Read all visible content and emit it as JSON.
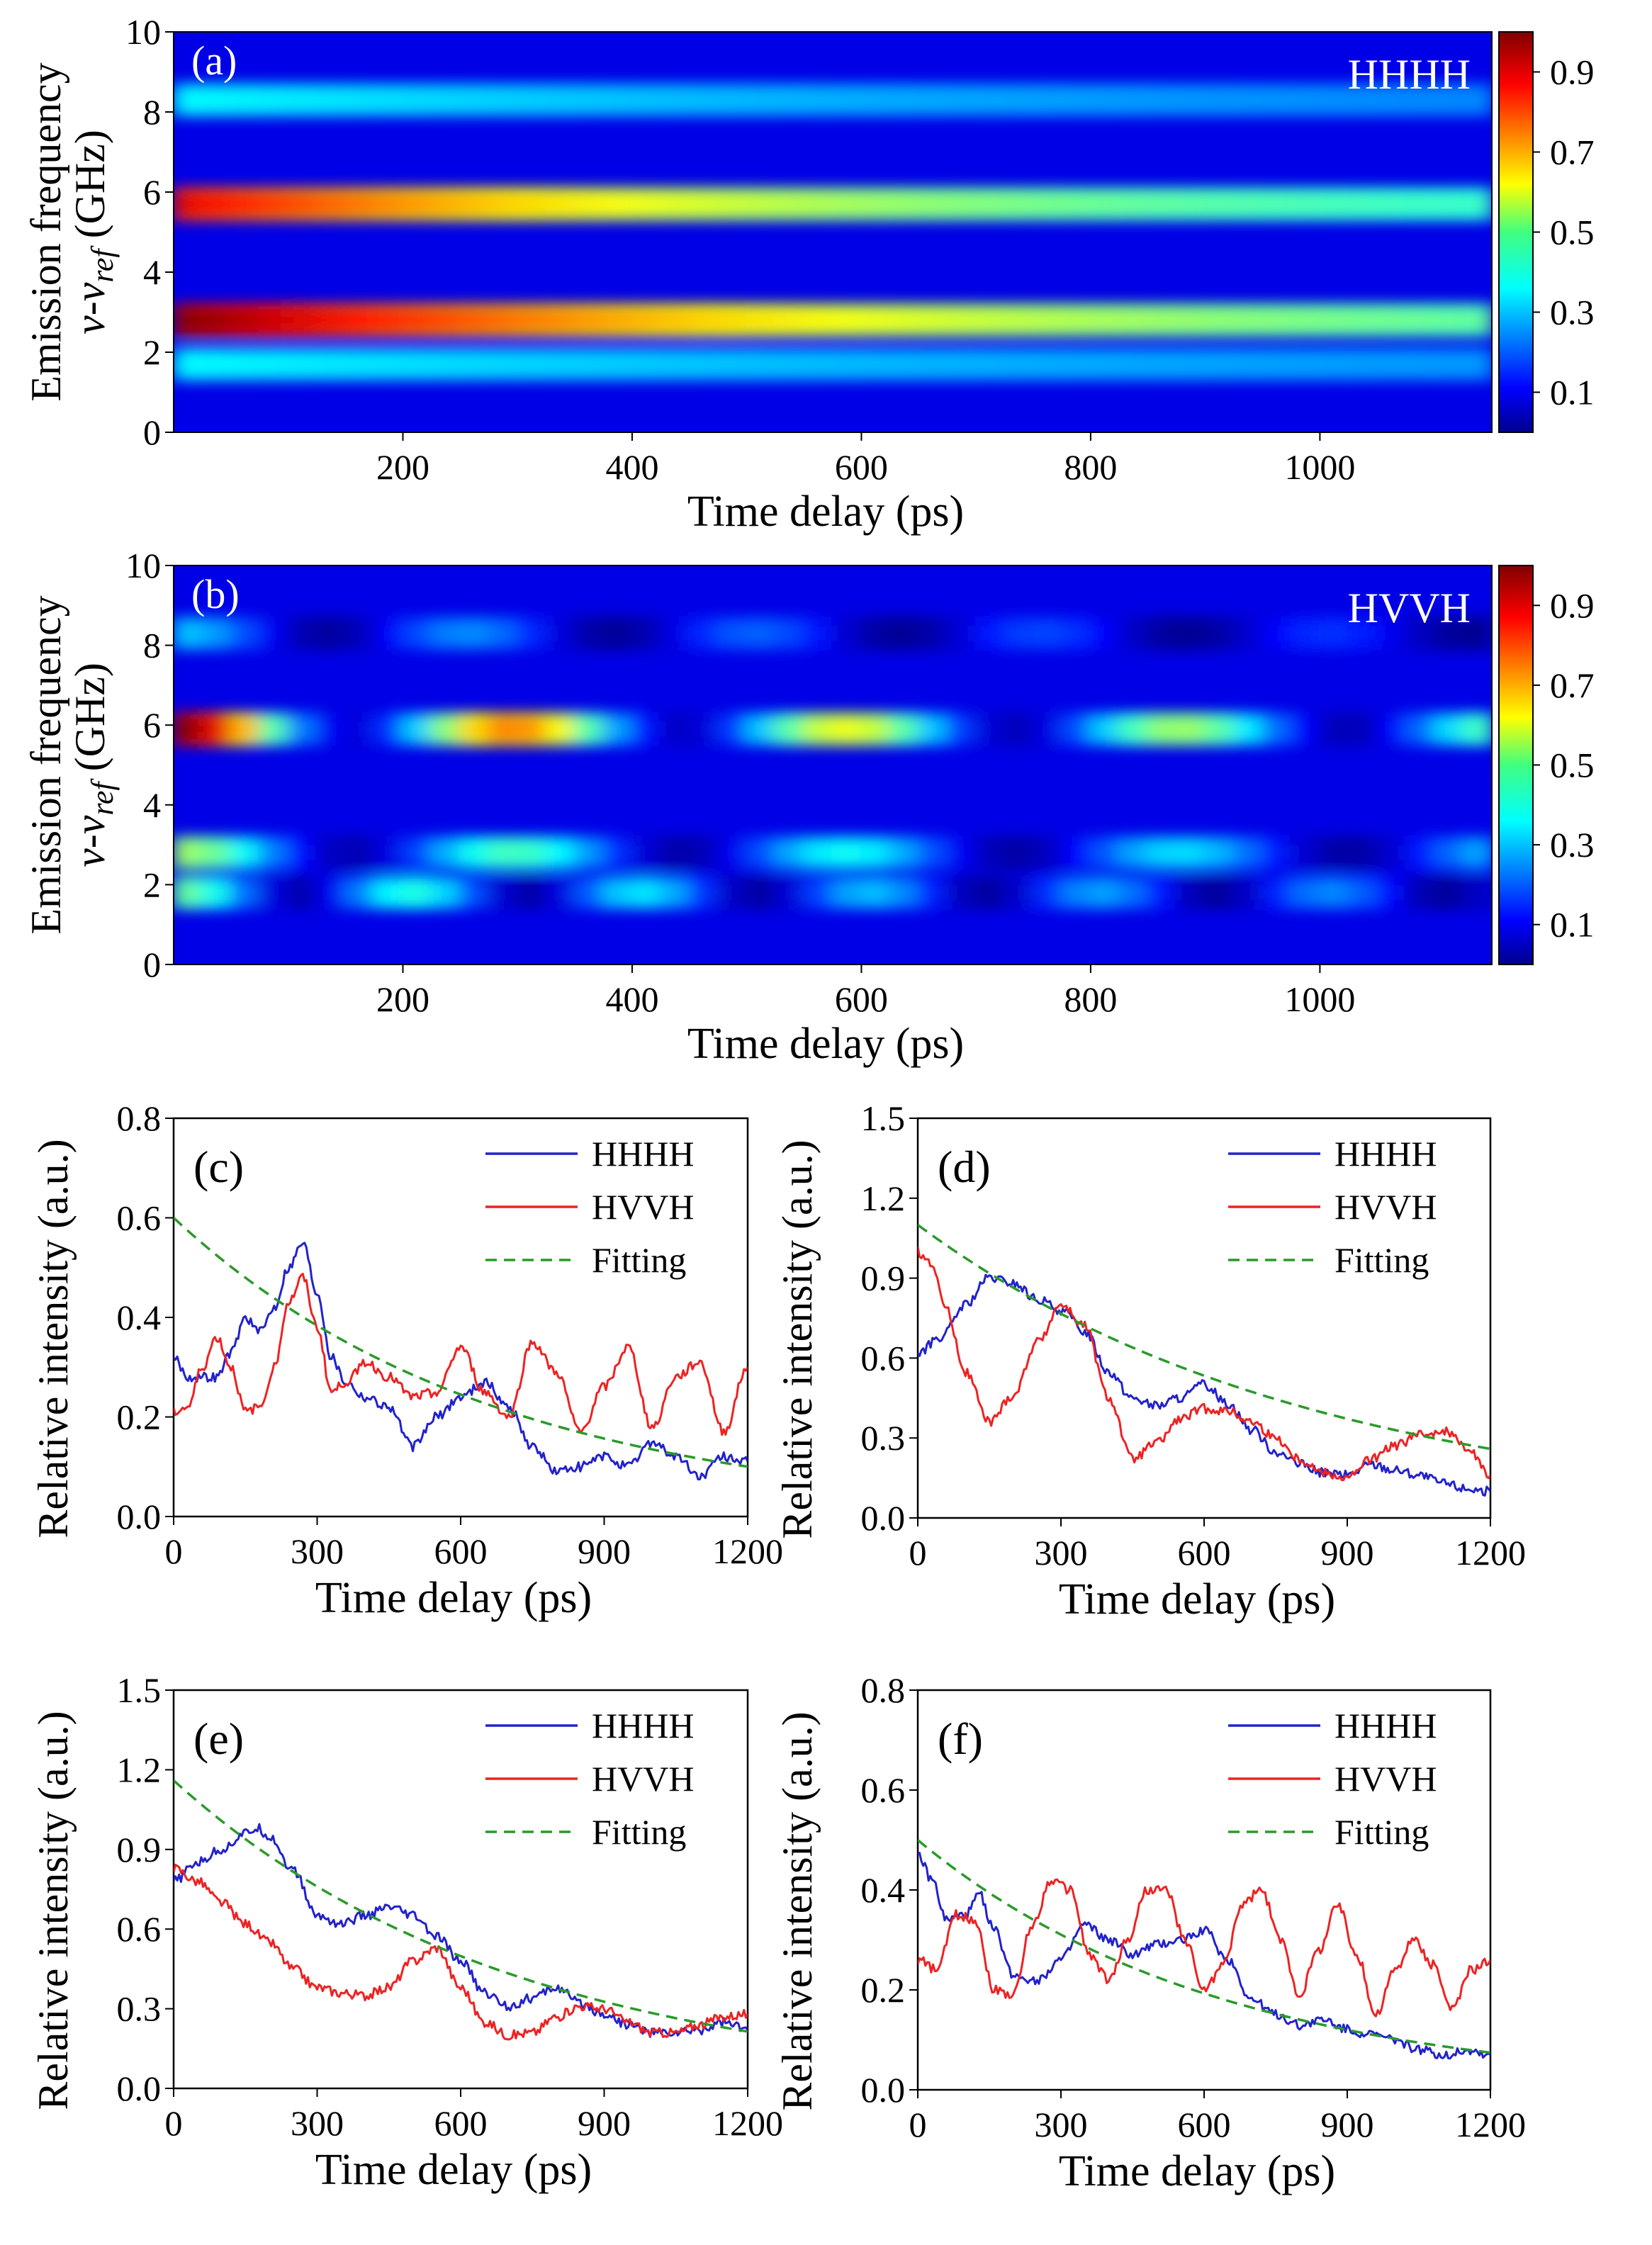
{
  "chart_data": [
    {
      "id": "a",
      "type": "heatmap",
      "panel_label": "(a)",
      "annotation": "HHHH",
      "xlabel": "Time delay (ps)",
      "ylabel_line1": "Emission frequency",
      "ylabel_line2_prefix": "v-v",
      "ylabel_line2_sub": "ref",
      "ylabel_line2_suffix": " (GHz)",
      "xlim": [
        0,
        1150
      ],
      "ylim": [
        0,
        10
      ],
      "x_ticks": [
        200,
        400,
        600,
        800,
        1000
      ],
      "y_ticks": [
        0,
        2,
        4,
        6,
        8,
        10
      ],
      "colorbar_ticks": [
        0.1,
        0.3,
        0.5,
        0.7,
        0.9
      ],
      "colorbar_range": [
        0,
        1
      ],
      "bands": [
        {
          "center_ghz": 8.3,
          "peak_intensity": [
            0.35,
            0.2
          ],
          "decay_ps": 900
        },
        {
          "center_ghz": 5.7,
          "peak_intensity": [
            0.85,
            0.35
          ],
          "decay_ps": 500
        },
        {
          "center_ghz": 2.8,
          "peak_intensity": [
            0.95,
            0.35
          ],
          "decay_ps": 600
        },
        {
          "center_ghz": 1.7,
          "peak_intensity": [
            0.35,
            0.22
          ],
          "decay_ps": 900
        }
      ]
    },
    {
      "id": "b",
      "type": "heatmap",
      "panel_label": "(b)",
      "annotation": "HVVH",
      "xlabel": "Time delay (ps)",
      "ylabel_line1": "Emission frequency",
      "ylabel_line2_prefix": "v-v",
      "ylabel_line2_sub": "ref",
      "ylabel_line2_suffix": " (GHz)",
      "xlim": [
        0,
        1150
      ],
      "ylim": [
        0,
        10
      ],
      "x_ticks": [
        200,
        400,
        600,
        800,
        1000
      ],
      "y_ticks": [
        0,
        2,
        4,
        6,
        8,
        10
      ],
      "colorbar_ticks": [
        0.1,
        0.3,
        0.5,
        0.7,
        0.9
      ],
      "colorbar_range": [
        0,
        1
      ],
      "bands": [
        {
          "center_ghz": 8.3,
          "peak_intensity": [
            0.3,
            0.12
          ],
          "decay_ps": 700,
          "oscillation_period_ps": 250
        },
        {
          "center_ghz": 5.9,
          "peak_intensity": [
            0.95,
            0.4
          ],
          "decay_ps": 500,
          "oscillation_period_ps": 290
        },
        {
          "center_ghz": 2.8,
          "peak_intensity": [
            0.5,
            0.25
          ],
          "decay_ps": 700,
          "oscillation_period_ps": 290
        },
        {
          "center_ghz": 1.8,
          "peak_intensity": [
            0.45,
            0.18
          ],
          "decay_ps": 700,
          "oscillation_period_ps": 200
        }
      ]
    },
    {
      "id": "c",
      "type": "line",
      "panel_label": "(c)",
      "xlabel": "Time delay (ps)",
      "ylabel": "Relative intensity (a.u.)",
      "xlim": [
        0,
        1200
      ],
      "ylim": [
        0,
        0.8
      ],
      "x_ticks": [
        0,
        300,
        600,
        900,
        1200
      ],
      "y_ticks": [
        0.0,
        0.2,
        0.4,
        0.6,
        0.8
      ],
      "y_tick_labels": [
        "0.0",
        "0.2",
        "0.4",
        "0.6",
        "0.8"
      ],
      "legend": {
        "position": "top-right",
        "entries": [
          "HHHH",
          "HVVH",
          "Fitting"
        ]
      },
      "series": [
        {
          "name": "HHHH",
          "color": "#2222cc",
          "x": [
            0,
            30,
            60,
            90,
            120,
            150,
            180,
            210,
            240,
            270,
            300,
            330,
            360,
            400,
            450,
            500,
            550,
            600,
            650,
            700,
            750,
            800,
            850,
            900,
            950,
            1000,
            1050,
            1100,
            1150,
            1200
          ],
          "y": [
            0.32,
            0.28,
            0.28,
            0.28,
            0.33,
            0.4,
            0.37,
            0.42,
            0.5,
            0.55,
            0.45,
            0.32,
            0.27,
            0.24,
            0.22,
            0.14,
            0.2,
            0.24,
            0.27,
            0.22,
            0.14,
            0.09,
            0.1,
            0.12,
            0.1,
            0.15,
            0.12,
            0.08,
            0.12,
            0.11
          ]
        },
        {
          "name": "HVVH",
          "color": "#ee2222",
          "x": [
            0,
            30,
            60,
            90,
            120,
            150,
            180,
            210,
            240,
            270,
            300,
            330,
            360,
            400,
            450,
            500,
            550,
            600,
            650,
            700,
            750,
            800,
            850,
            900,
            950,
            1000,
            1050,
            1100,
            1150,
            1200
          ],
          "y": [
            0.21,
            0.22,
            0.3,
            0.36,
            0.3,
            0.21,
            0.22,
            0.3,
            0.43,
            0.48,
            0.38,
            0.25,
            0.27,
            0.31,
            0.28,
            0.24,
            0.25,
            0.34,
            0.25,
            0.2,
            0.35,
            0.29,
            0.17,
            0.26,
            0.34,
            0.18,
            0.28,
            0.31,
            0.17,
            0.3
          ]
        },
        {
          "name": "Fitting",
          "color": "#2a9a2a",
          "dashed": true,
          "model": "exponential",
          "a": 0.6,
          "tau_ps": 670
        }
      ]
    },
    {
      "id": "d",
      "type": "line",
      "panel_label": "(d)",
      "xlabel": "Time delay (ps)",
      "ylabel": "Relative intensity (a.u.)",
      "xlim": [
        0,
        1200
      ],
      "ylim": [
        0,
        1.5
      ],
      "x_ticks": [
        0,
        300,
        600,
        900,
        1200
      ],
      "y_ticks": [
        0.0,
        0.3,
        0.6,
        0.9,
        1.2,
        1.5
      ],
      "y_tick_labels": [
        "0.0",
        "0.3",
        "0.6",
        "0.9",
        "1.2",
        "1.5"
      ],
      "legend": {
        "position": "top-right",
        "entries": [
          "HHHH",
          "HVVH",
          "Fitting"
        ]
      },
      "series": [
        {
          "name": "HHHH",
          "color": "#2222cc",
          "x": [
            0,
            50,
            100,
            150,
            200,
            250,
            300,
            350,
            400,
            450,
            500,
            550,
            600,
            650,
            700,
            750,
            800,
            850,
            900,
            950,
            1000,
            1050,
            1100,
            1150,
            1200
          ],
          "y": [
            0.62,
            0.68,
            0.8,
            0.9,
            0.88,
            0.82,
            0.78,
            0.7,
            0.55,
            0.45,
            0.42,
            0.45,
            0.5,
            0.43,
            0.33,
            0.25,
            0.2,
            0.17,
            0.16,
            0.2,
            0.18,
            0.16,
            0.13,
            0.11,
            0.1
          ]
        },
        {
          "name": "HVVH",
          "color": "#ee2222",
          "x": [
            0,
            30,
            60,
            100,
            150,
            200,
            250,
            300,
            350,
            400,
            450,
            500,
            550,
            600,
            650,
            700,
            750,
            800,
            850,
            900,
            950,
            1000,
            1050,
            1100,
            1150,
            1200
          ],
          "y": [
            1.0,
            0.95,
            0.78,
            0.55,
            0.36,
            0.46,
            0.66,
            0.8,
            0.72,
            0.45,
            0.22,
            0.28,
            0.37,
            0.41,
            0.4,
            0.36,
            0.3,
            0.22,
            0.17,
            0.15,
            0.22,
            0.27,
            0.31,
            0.33,
            0.27,
            0.16
          ]
        },
        {
          "name": "Fitting",
          "color": "#2a9a2a",
          "dashed": true,
          "model": "exponential",
          "a": 1.1,
          "tau_ps": 830
        }
      ]
    },
    {
      "id": "e",
      "type": "line",
      "panel_label": "(e)",
      "xlabel": "Time delay (ps)",
      "ylabel": "Relative intensity (a.u.)",
      "xlim": [
        0,
        1200
      ],
      "ylim": [
        0,
        1.5
      ],
      "x_ticks": [
        0,
        300,
        600,
        900,
        1200
      ],
      "y_ticks": [
        0.0,
        0.3,
        0.6,
        0.9,
        1.2,
        1.5
      ],
      "y_tick_labels": [
        "0.0",
        "0.3",
        "0.6",
        "0.9",
        "1.2",
        "1.5"
      ],
      "legend": {
        "position": "top-right",
        "entries": [
          "HHHH",
          "HVVH",
          "Fitting"
        ]
      },
      "series": [
        {
          "name": "HHHH",
          "color": "#2222cc",
          "x": [
            0,
            50,
            100,
            150,
            175,
            200,
            250,
            300,
            350,
            400,
            450,
            500,
            550,
            600,
            650,
            700,
            750,
            800,
            850,
            900,
            950,
            1000,
            1050,
            1100,
            1150,
            1200
          ],
          "y": [
            0.78,
            0.85,
            0.9,
            0.96,
            0.98,
            0.95,
            0.82,
            0.65,
            0.62,
            0.65,
            0.68,
            0.65,
            0.57,
            0.48,
            0.36,
            0.31,
            0.34,
            0.38,
            0.32,
            0.28,
            0.24,
            0.21,
            0.21,
            0.22,
            0.25,
            0.22
          ]
        },
        {
          "name": "HVVH",
          "color": "#ee2222",
          "x": [
            0,
            50,
            100,
            150,
            200,
            250,
            300,
            350,
            400,
            450,
            500,
            550,
            600,
            650,
            700,
            750,
            800,
            850,
            900,
            950,
            1000,
            1050,
            1100,
            1150,
            1200
          ],
          "y": [
            0.83,
            0.78,
            0.7,
            0.62,
            0.55,
            0.45,
            0.38,
            0.36,
            0.35,
            0.38,
            0.48,
            0.53,
            0.38,
            0.25,
            0.2,
            0.21,
            0.27,
            0.31,
            0.3,
            0.25,
            0.21,
            0.21,
            0.24,
            0.27,
            0.28
          ]
        },
        {
          "name": "Fitting",
          "color": "#2a9a2a",
          "dashed": true,
          "model": "exponential",
          "a": 1.16,
          "tau_ps": 710
        }
      ]
    },
    {
      "id": "f",
      "type": "line",
      "panel_label": "(f)",
      "xlabel": "Time delay (ps)",
      "ylabel": "Relative intensity (a.u.)",
      "xlim": [
        0,
        1200
      ],
      "ylim": [
        0,
        0.8
      ],
      "x_ticks": [
        0,
        300,
        600,
        900,
        1200
      ],
      "y_ticks": [
        0.0,
        0.2,
        0.4,
        0.6,
        0.8
      ],
      "y_tick_labels": [
        "0.0",
        "0.2",
        "0.4",
        "0.6",
        "0.8"
      ],
      "legend": {
        "position": "top-right",
        "entries": [
          "HHHH",
          "HVVH",
          "Fitting"
        ]
      },
      "series": [
        {
          "name": "HHHH",
          "color": "#2222cc",
          "x": [
            0,
            30,
            60,
            100,
            130,
            160,
            200,
            250,
            300,
            350,
            400,
            450,
            500,
            550,
            600,
            650,
            700,
            750,
            800,
            850,
            900,
            950,
            1000,
            1050,
            1100,
            1150,
            1200
          ],
          "y": [
            0.47,
            0.42,
            0.34,
            0.35,
            0.39,
            0.32,
            0.23,
            0.22,
            0.26,
            0.33,
            0.3,
            0.27,
            0.29,
            0.3,
            0.32,
            0.26,
            0.18,
            0.15,
            0.13,
            0.14,
            0.12,
            0.11,
            0.1,
            0.08,
            0.07,
            0.08,
            0.07
          ]
        },
        {
          "name": "HVVH",
          "color": "#ee2222",
          "x": [
            0,
            40,
            80,
            120,
            160,
            200,
            240,
            280,
            320,
            360,
            400,
            440,
            480,
            520,
            560,
            600,
            640,
            680,
            720,
            760,
            800,
            840,
            880,
            920,
            960,
            1000,
            1040,
            1080,
            1120,
            1160,
            1200
          ],
          "y": [
            0.26,
            0.24,
            0.35,
            0.34,
            0.2,
            0.19,
            0.33,
            0.42,
            0.4,
            0.27,
            0.22,
            0.3,
            0.4,
            0.4,
            0.3,
            0.2,
            0.25,
            0.37,
            0.4,
            0.3,
            0.19,
            0.28,
            0.37,
            0.27,
            0.15,
            0.24,
            0.3,
            0.25,
            0.16,
            0.24,
            0.26
          ]
        },
        {
          "name": "Fitting",
          "color": "#2a9a2a",
          "dashed": true,
          "model": "exponential",
          "a": 0.5,
          "tau_ps": 630
        }
      ]
    }
  ]
}
